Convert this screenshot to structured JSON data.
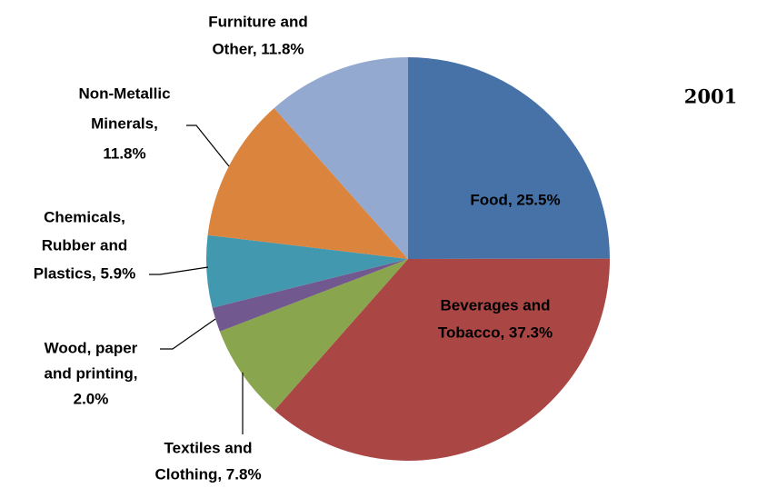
{
  "chart_data": {
    "type": "pie",
    "title": "2001",
    "values": [
      25.5,
      37.3,
      7.8,
      2.0,
      5.9,
      11.8,
      11.8
    ],
    "value_labels": [
      [
        "Food, 25.5%"
      ],
      [
        "Beverages and",
        "Tobacco, 37.3%"
      ],
      [
        "Textiles and",
        "Clothing, 7.8%"
      ],
      [
        "Wood, paper",
        "and printing,",
        "2.0%"
      ],
      [
        "Chemicals,",
        "Rubber and",
        "Plastics, 5.9%"
      ],
      [
        "Non-Metallic",
        "Minerals,",
        "11.8%"
      ],
      [
        "Furniture and",
        "Other, 11.8%"
      ]
    ],
    "colors": [
      "#4672a8",
      "#aa4644",
      "#89a54e",
      "#71588f",
      "#4298af",
      "#db843d",
      "#93a9cf"
    ]
  }
}
